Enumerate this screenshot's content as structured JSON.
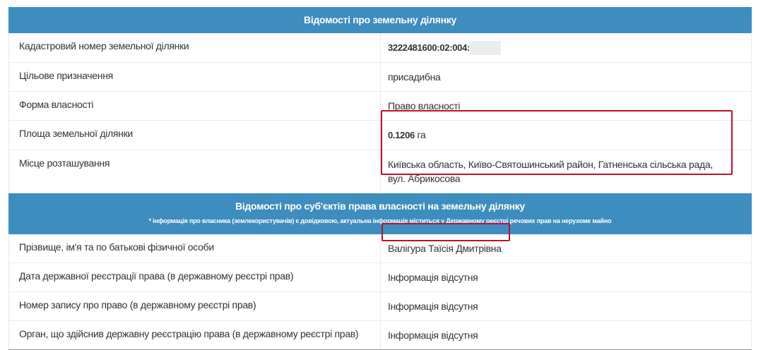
{
  "section1": {
    "title": "Відомості про земельну ділянку",
    "rows": [
      {
        "label": "Кадастровий номер земельної ділянки",
        "value": "3222481600:02:004:"
      },
      {
        "label": "Цільове призначення",
        "value": "присадибна"
      },
      {
        "label": "Форма власності",
        "value": "Право власності"
      },
      {
        "label": "Площа земельної ділянки",
        "value": "0.1206",
        "unit": " га"
      },
      {
        "label": "Місце розташування",
        "value": "Київська область, Київо-Святошинський район, Гатненська сільська рада, вул. Абрикосова"
      }
    ]
  },
  "section2": {
    "title": "Відомості про суб'єктів права власності на земельну ділянку",
    "note": "* інформація про власника (землекористувачів) є довідковою, актуальна інформація міститься у Державному реєстрі речових прав на нерухоме майно",
    "rows": [
      {
        "label": "Прізвище, ім'я та по батькові фізичної особи",
        "value": "Валігура Таїсія Дмитрівна"
      },
      {
        "label": "Дата державної реєстрації права (в державному реєстрі прав)",
        "value": "Інформація відсутня"
      },
      {
        "label": "Номер запису про право (в державному реєстрі прав)",
        "value": "Інформація відсутня"
      },
      {
        "label": "Орган, що здійснив державну реєстрацію права (в державному реєстрі прав)",
        "value": "Інформація відсутня"
      }
    ]
  },
  "colors": {
    "header": "#3d8dbf",
    "highlight": "#c0102a"
  }
}
